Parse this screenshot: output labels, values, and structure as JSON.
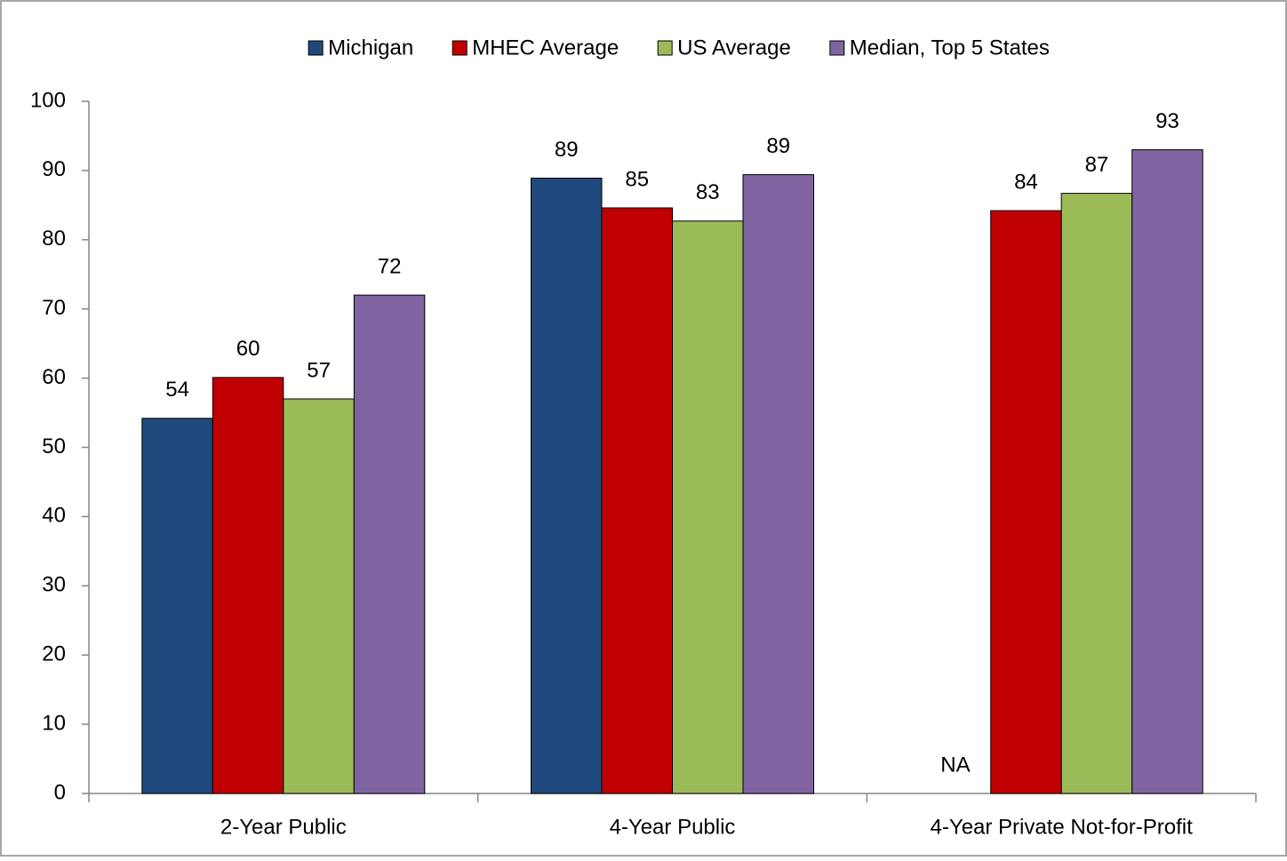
{
  "chart_data": {
    "type": "bar",
    "categories": [
      "2-Year Public",
      "4-Year Public",
      "4-Year Private Not-for-Profit"
    ],
    "series": [
      {
        "name": "Michigan",
        "color": "#1f497d",
        "values": [
          54.2,
          88.9,
          null
        ],
        "value_labels": [
          "54",
          "89",
          "NA"
        ]
      },
      {
        "name": "MHEC Average",
        "color": "#c00000",
        "values": [
          60.1,
          84.6,
          84.2
        ],
        "value_labels": [
          "60",
          "85",
          "84"
        ]
      },
      {
        "name": "US Average",
        "color": "#9bbb59",
        "values": [
          57.0,
          82.7,
          86.7
        ],
        "value_labels": [
          "57",
          "83",
          "87"
        ]
      },
      {
        "name": "Median, Top 5 States",
        "color": "#8064a2",
        "values": [
          72.0,
          89.4,
          93.0
        ],
        "value_labels": [
          "72",
          "89",
          "93"
        ]
      }
    ],
    "ylim": [
      0,
      100
    ],
    "yticks": [
      0,
      10,
      20,
      30,
      40,
      50,
      60,
      70,
      80,
      90,
      100
    ],
    "grid": false,
    "legend": "top"
  }
}
